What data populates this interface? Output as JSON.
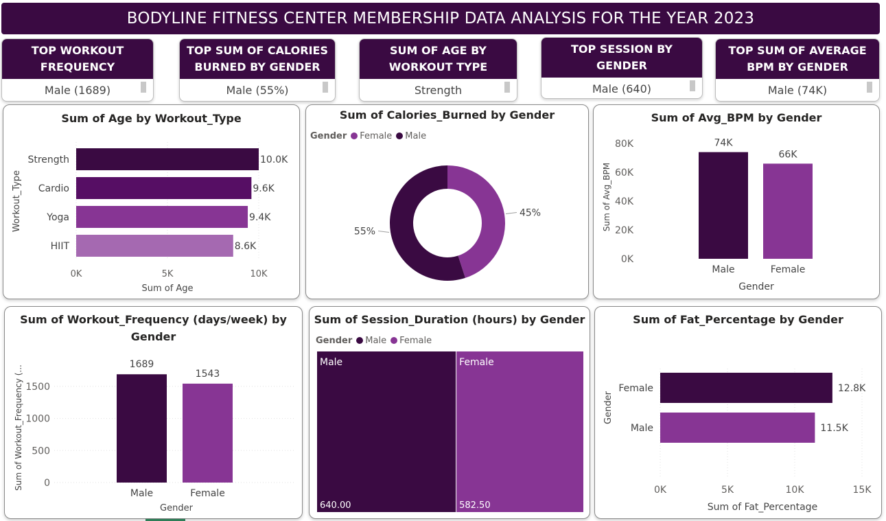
{
  "header": {
    "title": "BODYLINE FITNESS CENTER MEMBERSHIP DATA ANALYSIS FOR THE YEAR 2023"
  },
  "kpis": [
    {
      "label": "TOP WORKOUT FREQUENCY",
      "value": "Male (1689)"
    },
    {
      "label": "TOP SUM OF CALORIES BURNED BY GENDER",
      "value": "Male (55%)"
    },
    {
      "label": "SUM OF AGE BY WORKOUT TYPE",
      "value": "Strength"
    },
    {
      "label": "TOP SESSION BY GENDER",
      "value": "Male (640)"
    },
    {
      "label": "TOP SUM OF AVERAGE BPM BY GENDER",
      "value": "Male (74K)"
    }
  ],
  "colors": {
    "dark": "#3a0a42",
    "mid": "#560e64",
    "purple": "#873594",
    "light": "#a569b1"
  },
  "chart_data": [
    {
      "id": "age_by_workout",
      "type": "bar",
      "orientation": "horizontal",
      "title": "Sum of Age by Workout_Type",
      "xlabel": "Sum of Age",
      "ylabel": "Workout_Type",
      "categories": [
        "Strength",
        "Cardio",
        "Yoga",
        "HIIT"
      ],
      "values": [
        10000,
        9600,
        9400,
        8600
      ],
      "data_labels": [
        "10.0K",
        "9.6K",
        "9.4K",
        "8.6K"
      ],
      "xlim": [
        0,
        10000
      ],
      "ticks": [
        0,
        5000,
        10000
      ],
      "tick_labels": [
        "0K",
        "5K",
        "10K"
      ],
      "grid": true
    },
    {
      "id": "calories_by_gender",
      "type": "pie",
      "donut": true,
      "title": "Sum of Calories_Burned by Gender",
      "legend_title": "Gender",
      "legend": [
        "Female",
        "Male"
      ],
      "slices": [
        {
          "name": "Female",
          "value": 45,
          "label": "45%"
        },
        {
          "name": "Male",
          "value": 55,
          "label": "55%"
        }
      ]
    },
    {
      "id": "bpm_by_gender",
      "type": "bar",
      "title": "Sum of Avg_BPM by Gender",
      "xlabel": "Gender",
      "ylabel": "Sum of Avg_BPM",
      "categories": [
        "Male",
        "Female"
      ],
      "values": [
        74000,
        66000
      ],
      "data_labels": [
        "74K",
        "66K"
      ],
      "ylim": [
        0,
        80000
      ],
      "ticks": [
        0,
        20000,
        40000,
        60000,
        80000
      ],
      "tick_labels": [
        "0K",
        "20K",
        "40K",
        "60K",
        "80K"
      ],
      "grid": false
    },
    {
      "id": "freq_by_gender",
      "type": "bar",
      "title": "Sum of Workout_Frequency (days/week) by Gender",
      "xlabel": "Gender",
      "ylabel": "Sum of Workout_Frequency (...",
      "categories": [
        "Male",
        "Female"
      ],
      "values": [
        1689,
        1543
      ],
      "data_labels": [
        "1689",
        "1543"
      ],
      "ylim": [
        0,
        1500
      ],
      "ticks": [
        0,
        500,
        1000,
        1500
      ],
      "tick_labels": [
        "0",
        "500",
        "1000",
        "1500"
      ],
      "grid": true
    },
    {
      "id": "session_by_gender",
      "type": "treemap",
      "title": "Sum of Session_Duration (hours) by Gender",
      "legend_title": "Gender",
      "legend": [
        "Male",
        "Female"
      ],
      "items": [
        {
          "name": "Male",
          "value": 640.0,
          "label": "640.00"
        },
        {
          "name": "Female",
          "value": 582.5,
          "label": "582.50"
        }
      ]
    },
    {
      "id": "fat_by_gender",
      "type": "bar",
      "orientation": "horizontal",
      "title": "Sum of Fat_Percentage by Gender",
      "xlabel": "Sum of Fat_Percentage",
      "ylabel": "Gender",
      "categories": [
        "Female",
        "Male"
      ],
      "values": [
        12800,
        11500
      ],
      "data_labels": [
        "12.8K",
        "11.5K"
      ],
      "xlim": [
        0,
        15000
      ],
      "ticks": [
        0,
        5000,
        10000,
        15000
      ],
      "tick_labels": [
        "0K",
        "5K",
        "10K",
        "15K"
      ],
      "grid": true
    }
  ]
}
